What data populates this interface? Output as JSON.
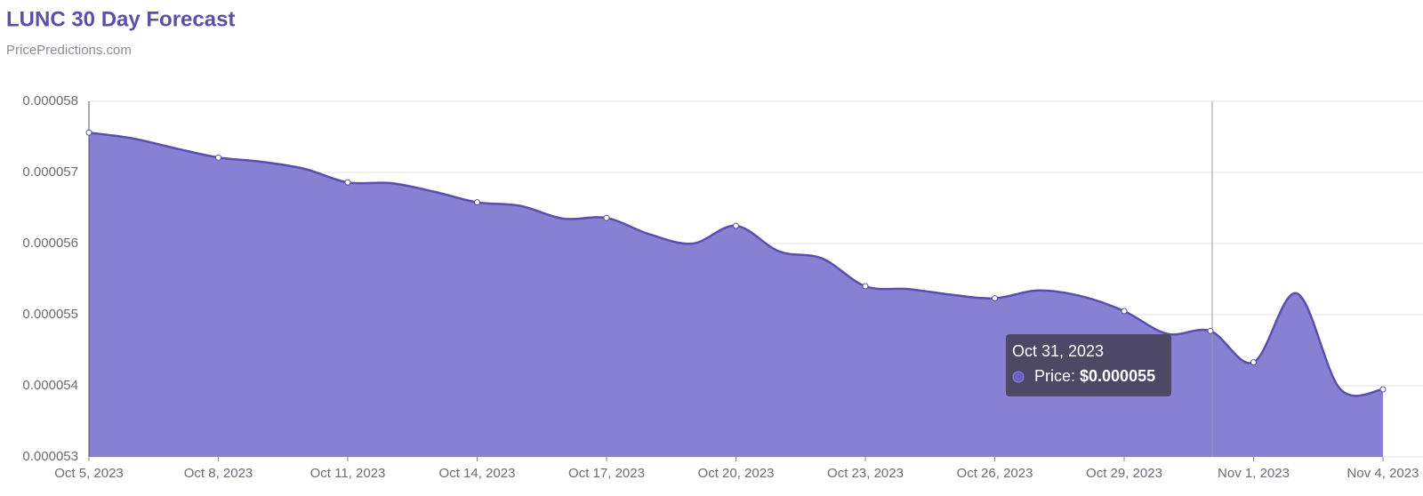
{
  "chart_data": {
    "type": "area",
    "title": "LUNC 30 Day Forecast",
    "subtitle": "PricePredictions.com",
    "x": [
      "2023-10-05",
      "2023-10-06",
      "2023-10-07",
      "2023-10-08",
      "2023-10-09",
      "2023-10-10",
      "2023-10-11",
      "2023-10-12",
      "2023-10-13",
      "2023-10-14",
      "2023-10-15",
      "2023-10-16",
      "2023-10-17",
      "2023-10-18",
      "2023-10-19",
      "2023-10-20",
      "2023-10-21",
      "2023-10-22",
      "2023-10-23",
      "2023-10-24",
      "2023-10-25",
      "2023-10-26",
      "2023-10-27",
      "2023-10-28",
      "2023-10-29",
      "2023-10-30",
      "2023-10-31",
      "2023-11-01",
      "2023-11-02",
      "2023-11-03",
      "2023-11-04"
    ],
    "series": [
      {
        "name": "Price",
        "color": "#5a4fb0",
        "fill": "#8780d3",
        "values": [
          5.756e-05,
          5.748e-05,
          5.734e-05,
          5.721e-05,
          5.715e-05,
          5.705e-05,
          5.686e-05,
          5.685e-05,
          5.673e-05,
          5.658e-05,
          5.653e-05,
          5.635e-05,
          5.636e-05,
          5.613e-05,
          5.6e-05,
          5.625e-05,
          5.589e-05,
          5.579e-05,
          5.54e-05,
          5.536e-05,
          5.528e-05,
          5.523e-05,
          5.534e-05,
          5.526e-05,
          5.505e-05,
          5.473e-05,
          5.477e-05,
          5.433e-05,
          5.53e-05,
          5.396e-05,
          5.395e-05
        ]
      }
    ],
    "xlim": [
      "2023-10-05",
      "2023-11-04"
    ],
    "xticks": [
      {
        "value": "2023-10-05",
        "label": "Oct 5, 2023"
      },
      {
        "value": "2023-10-08",
        "label": "Oct 8, 2023"
      },
      {
        "value": "2023-10-11",
        "label": "Oct 11, 2023"
      },
      {
        "value": "2023-10-14",
        "label": "Oct 14, 2023"
      },
      {
        "value": "2023-10-17",
        "label": "Oct 17, 2023"
      },
      {
        "value": "2023-10-20",
        "label": "Oct 20, 2023"
      },
      {
        "value": "2023-10-23",
        "label": "Oct 23, 2023"
      },
      {
        "value": "2023-10-26",
        "label": "Oct 26, 2023"
      },
      {
        "value": "2023-10-29",
        "label": "Oct 29, 2023"
      },
      {
        "value": "2023-11-01",
        "label": "Nov 1, 2023"
      },
      {
        "value": "2023-11-04",
        "label": "Nov 4, 2023"
      }
    ],
    "ylim": [
      5.3e-05,
      5.8e-05
    ],
    "yticks": [
      5.3e-05,
      5.4e-05,
      5.5e-05,
      5.6e-05,
      5.7e-05,
      5.8e-05
    ],
    "grid": true,
    "tooltip": {
      "title": "Oct 31, 2023",
      "label": "Price:",
      "value": "$0.000055"
    }
  }
}
